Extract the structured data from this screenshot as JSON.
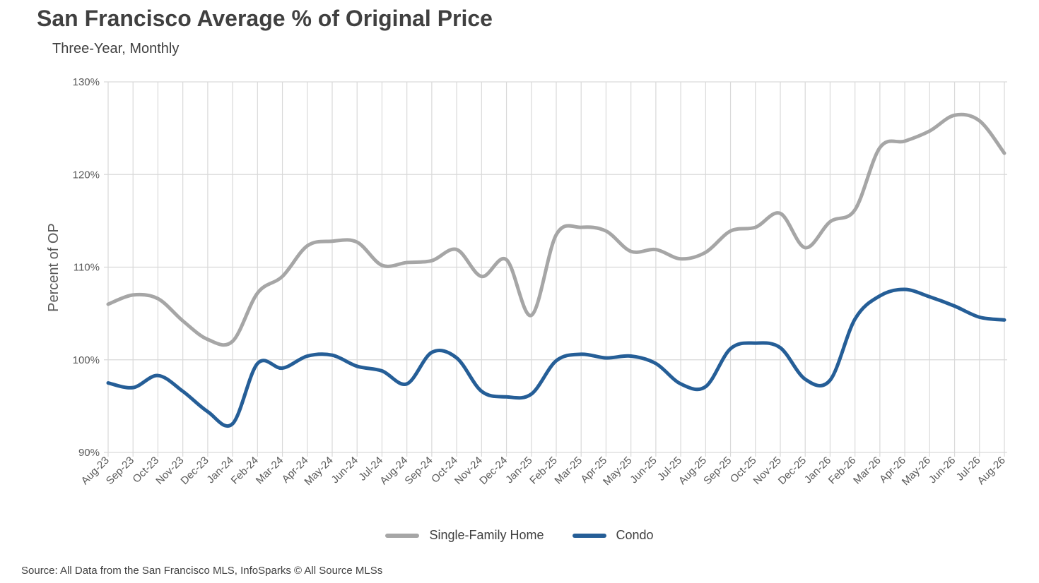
{
  "title": "San Francisco Average % of Original Price",
  "subtitle": "Three-Year, Monthly",
  "source": "Source: All Data from the San Francisco MLS, InfoSparks © All Source MLSs",
  "chart_data": {
    "type": "line",
    "ylabel": "Percent of OP",
    "ylim": [
      90,
      130
    ],
    "yticks": [
      90,
      100,
      110,
      120,
      130
    ],
    "ytick_format": "%",
    "grid": true,
    "legend_position": "bottom",
    "categories": [
      "Aug-23",
      "Sep-23",
      "Oct-23",
      "Nov-23",
      "Dec-23",
      "Jan-24",
      "Feb-24",
      "Mar-24",
      "Apr-24",
      "May-24",
      "Jun-24",
      "Jul-24",
      "Aug-24",
      "Sep-24",
      "Oct-24",
      "Nov-24",
      "Dec-24",
      "Jan-25",
      "Feb-25",
      "Mar-25",
      "Apr-25",
      "May-25",
      "Jun-25",
      "Jul-25",
      "Aug-25",
      "Sep-25",
      "Oct-25",
      "Nov-25",
      "Dec-25",
      "Jan-26",
      "Feb-26",
      "Mar-26",
      "Apr-26",
      "May-26",
      "Jun-26",
      "Jul-26",
      "Aug-26"
    ],
    "series": [
      {
        "name": "Single-Family Home",
        "color": "#a6a6a6",
        "values": [
          106.0,
          107.0,
          106.6,
          104.2,
          102.2,
          102.0,
          107.2,
          109.0,
          112.3,
          112.8,
          112.7,
          110.2,
          110.5,
          110.7,
          111.9,
          109.0,
          110.8,
          104.8,
          113.5,
          114.3,
          113.9,
          111.7,
          111.9,
          110.9,
          111.6,
          113.9,
          114.3,
          115.8,
          112.1,
          114.9,
          116.2,
          122.9,
          123.6,
          124.7,
          126.4,
          125.8,
          122.3
        ]
      },
      {
        "name": "Condo",
        "color": "#255e97",
        "values": [
          97.5,
          97.0,
          98.3,
          96.6,
          94.4,
          93.1,
          99.6,
          99.1,
          100.4,
          100.5,
          99.3,
          98.8,
          97.4,
          100.8,
          100.2,
          96.6,
          96.0,
          96.3,
          99.9,
          100.6,
          100.2,
          100.4,
          99.6,
          97.4,
          97.1,
          101.2,
          101.8,
          101.3,
          97.9,
          97.8,
          104.4,
          106.9,
          107.6,
          106.8,
          105.8,
          104.6,
          104.3
        ]
      }
    ]
  }
}
